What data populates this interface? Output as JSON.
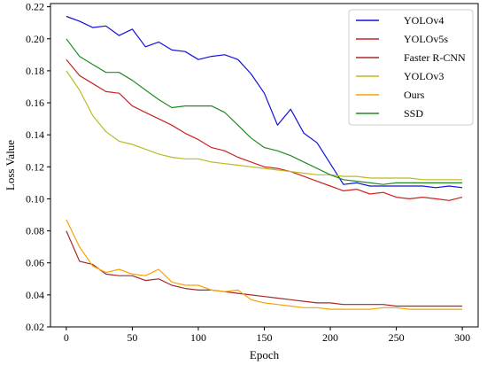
{
  "chart_data": {
    "type": "line",
    "xlabel": "Epoch",
    "ylabel": "Loss Value",
    "xlim": [
      -12,
      312
    ],
    "ylim": [
      0.02,
      0.222
    ],
    "xticks": [
      0,
      50,
      100,
      150,
      200,
      250,
      300
    ],
    "yticks": [
      0.02,
      0.04,
      0.06,
      0.08,
      0.1,
      0.12,
      0.14,
      0.16,
      0.18,
      0.2,
      0.22
    ],
    "ytick_labels": [
      "0.02",
      "0.04",
      "0.06",
      "0.08",
      "0.10",
      "0.12",
      "0.14",
      "0.16",
      "0.18",
      "0.20",
      "0.22"
    ],
    "legend_position": "top-right",
    "grid": false,
    "series": [
      {
        "name": "YOLOv4",
        "color": "#1111dd",
        "x": [
          0,
          10,
          20,
          30,
          40,
          50,
          60,
          70,
          80,
          90,
          100,
          110,
          120,
          130,
          140,
          150,
          160,
          170,
          180,
          190,
          200,
          210,
          220,
          230,
          240,
          250,
          260,
          270,
          280,
          290,
          300
        ],
        "y": [
          0.214,
          0.211,
          0.207,
          0.208,
          0.202,
          0.206,
          0.195,
          0.198,
          0.193,
          0.192,
          0.187,
          0.189,
          0.19,
          0.187,
          0.178,
          0.166,
          0.146,
          0.156,
          0.141,
          0.135,
          0.122,
          0.109,
          0.11,
          0.108,
          0.108,
          0.108,
          0.108,
          0.108,
          0.107,
          0.108,
          0.107
        ]
      },
      {
        "name": "YOLOv5s",
        "color": "#cc2222",
        "x": [
          0,
          10,
          20,
          30,
          40,
          50,
          60,
          70,
          80,
          90,
          100,
          110,
          120,
          130,
          140,
          150,
          160,
          170,
          180,
          190,
          200,
          210,
          220,
          230,
          240,
          250,
          260,
          270,
          280,
          290,
          300
        ],
        "y": [
          0.187,
          0.177,
          0.172,
          0.167,
          0.166,
          0.158,
          0.154,
          0.15,
          0.146,
          0.141,
          0.137,
          0.132,
          0.13,
          0.126,
          0.123,
          0.12,
          0.119,
          0.117,
          0.114,
          0.111,
          0.108,
          0.105,
          0.106,
          0.103,
          0.104,
          0.101,
          0.1,
          0.101,
          0.1,
          0.099,
          0.101
        ]
      },
      {
        "name": "Faster R-CNN",
        "color": "#a52a2a",
        "x": [
          0,
          10,
          20,
          30,
          40,
          50,
          60,
          70,
          80,
          90,
          100,
          110,
          120,
          130,
          140,
          150,
          160,
          170,
          180,
          190,
          200,
          210,
          220,
          230,
          240,
          250,
          260,
          270,
          280,
          290,
          300
        ],
        "y": [
          0.08,
          0.061,
          0.059,
          0.053,
          0.052,
          0.052,
          0.049,
          0.05,
          0.046,
          0.044,
          0.043,
          0.043,
          0.042,
          0.041,
          0.04,
          0.039,
          0.038,
          0.037,
          0.036,
          0.035,
          0.035,
          0.034,
          0.034,
          0.034,
          0.034,
          0.033,
          0.033,
          0.033,
          0.033,
          0.033,
          0.033
        ]
      },
      {
        "name": "YOLOv3",
        "color": "#bbbb22",
        "x": [
          0,
          10,
          20,
          30,
          40,
          50,
          60,
          70,
          80,
          90,
          100,
          110,
          120,
          130,
          140,
          150,
          160,
          170,
          180,
          190,
          200,
          210,
          220,
          230,
          240,
          250,
          260,
          270,
          280,
          290,
          300
        ],
        "y": [
          0.18,
          0.168,
          0.152,
          0.142,
          0.136,
          0.134,
          0.131,
          0.128,
          0.126,
          0.125,
          0.125,
          0.123,
          0.122,
          0.121,
          0.12,
          0.119,
          0.118,
          0.117,
          0.116,
          0.115,
          0.115,
          0.114,
          0.114,
          0.113,
          0.113,
          0.113,
          0.113,
          0.112,
          0.112,
          0.112,
          0.112
        ]
      },
      {
        "name": "Ours",
        "color": "#f5a300",
        "x": [
          0,
          10,
          20,
          30,
          40,
          50,
          60,
          70,
          80,
          90,
          100,
          110,
          120,
          130,
          140,
          150,
          160,
          170,
          180,
          190,
          200,
          210,
          220,
          230,
          240,
          250,
          260,
          270,
          280,
          290,
          300
        ],
        "y": [
          0.087,
          0.07,
          0.058,
          0.054,
          0.056,
          0.053,
          0.052,
          0.056,
          0.048,
          0.046,
          0.046,
          0.043,
          0.042,
          0.043,
          0.037,
          0.035,
          0.034,
          0.033,
          0.032,
          0.032,
          0.031,
          0.031,
          0.031,
          0.031,
          0.032,
          0.032,
          0.031,
          0.031,
          0.031,
          0.031,
          0.031
        ]
      },
      {
        "name": "SSD",
        "color": "#228b22",
        "x": [
          0,
          10,
          20,
          30,
          40,
          50,
          60,
          70,
          80,
          90,
          100,
          110,
          120,
          130,
          140,
          150,
          160,
          170,
          180,
          190,
          200,
          210,
          220,
          230,
          240,
          250,
          260,
          270,
          280,
          290,
          300
        ],
        "y": [
          0.2,
          0.189,
          0.184,
          0.179,
          0.179,
          0.174,
          0.168,
          0.162,
          0.157,
          0.158,
          0.158,
          0.158,
          0.154,
          0.146,
          0.138,
          0.132,
          0.13,
          0.127,
          0.123,
          0.119,
          0.115,
          0.112,
          0.111,
          0.11,
          0.109,
          0.11,
          0.11,
          0.11,
          0.11,
          0.11,
          0.11
        ]
      }
    ]
  }
}
